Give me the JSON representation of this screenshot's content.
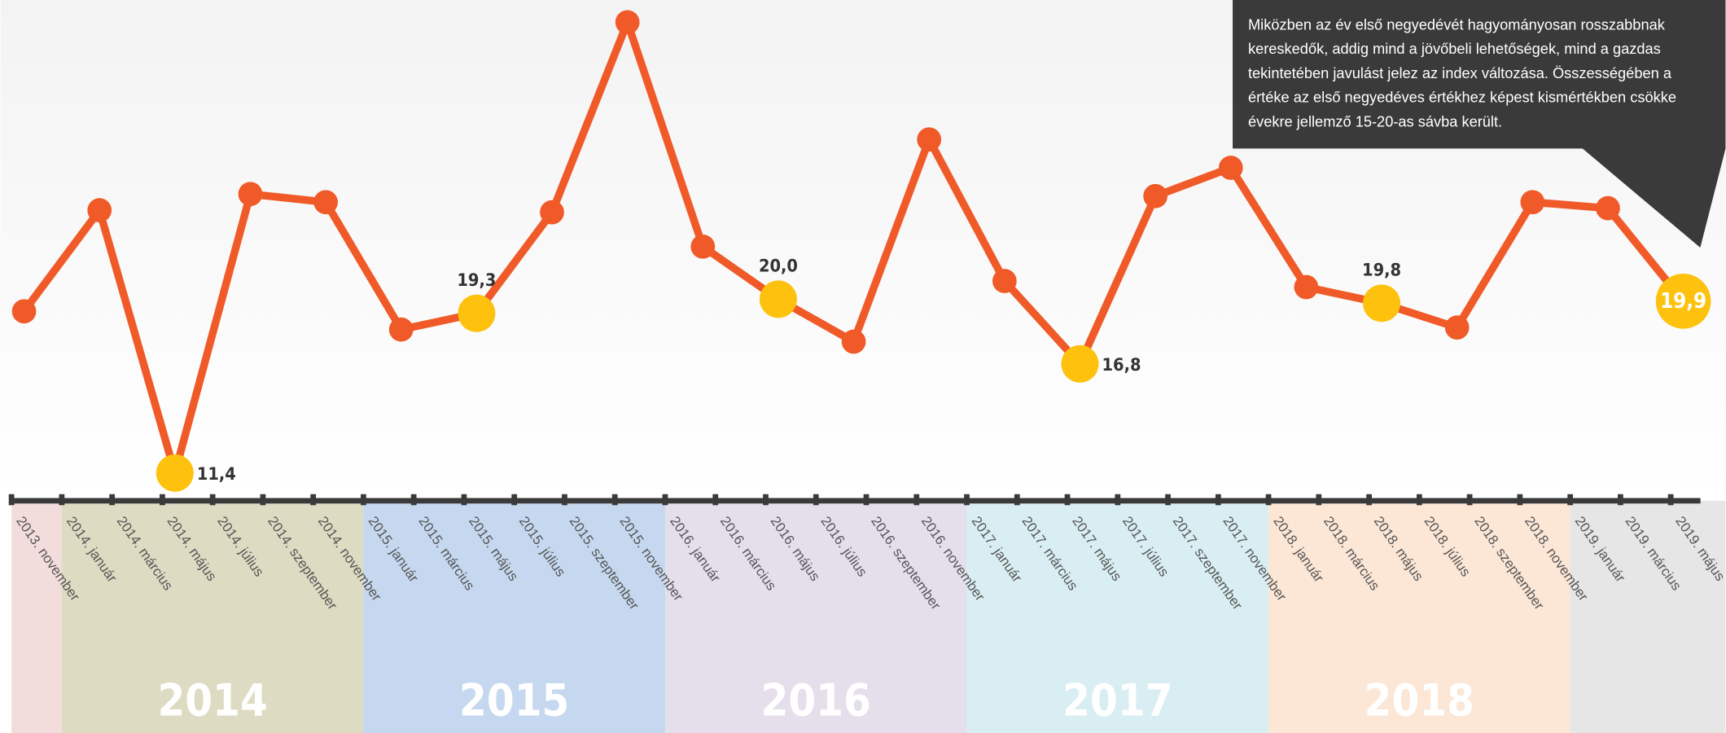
{
  "chart_data": {
    "type": "line",
    "annotation": [
      "Miközben az év első negyedévét hagyományosan rosszabbnak",
      "kereskedők, addig mind a jövőbeli lehetőségek, mind a gazdas",
      "tekintetében javulást jelez az index változása. Összességében a",
      "értéke az első negyedéves értékhez képest kismértékben csökke",
      "évekre jellemző 15-20-as sávba került."
    ],
    "x": [
      0.5,
      3.5,
      6.5,
      9.5,
      12.5,
      15.5,
      18.5,
      21.5,
      24.5,
      27.5,
      30.5,
      33.5,
      36.5,
      39.5,
      42.5,
      45.5,
      48.5,
      51.5,
      54.5,
      57.5,
      60.5,
      63.5,
      66.5
    ],
    "values": [
      19.4,
      24.4,
      11.4,
      25.2,
      24.8,
      18.5,
      19.3,
      24.3,
      33.7,
      22.6,
      20.0,
      17.9,
      27.9,
      20.9,
      16.8,
      25.1,
      26.5,
      20.6,
      19.8,
      18.6,
      24.8,
      24.5,
      19.9
    ],
    "value_labels": [
      null,
      null,
      "11,4",
      null,
      null,
      null,
      "19,3",
      null,
      null,
      null,
      "20,0",
      null,
      null,
      null,
      "16,8",
      null,
      null,
      null,
      "19,8",
      null,
      null,
      null,
      "19,9"
    ],
    "color": "#f05a28",
    "highlight_color": "#fdc10e",
    "xlim": [
      -0.44,
      68.18
    ],
    "ylim": [
      10.3,
      34.8
    ],
    "xticks": [
      {
        "value": 0,
        "label": "2013. november"
      },
      {
        "value": 2,
        "label": "2014. január"
      },
      {
        "value": 4,
        "label": "2014. március"
      },
      {
        "value": 6,
        "label": "2014. május"
      },
      {
        "value": 8,
        "label": "2014. július"
      },
      {
        "value": 10,
        "label": "2014. szeptember"
      },
      {
        "value": 12,
        "label": "2014. november"
      },
      {
        "value": 14,
        "label": "2015. január"
      },
      {
        "value": 16,
        "label": "2015. március"
      },
      {
        "value": 18,
        "label": "2015. május"
      },
      {
        "value": 20,
        "label": "2015. július"
      },
      {
        "value": 22,
        "label": "2015. szeptember"
      },
      {
        "value": 24,
        "label": "2015. november"
      },
      {
        "value": 26,
        "label": "2016. január"
      },
      {
        "value": 28,
        "label": "2016. március"
      },
      {
        "value": 30,
        "label": "2016. május"
      },
      {
        "value": 32,
        "label": "2016. július"
      },
      {
        "value": 34,
        "label": "2016. szeptember"
      },
      {
        "value": 36,
        "label": "2016. november"
      },
      {
        "value": 38,
        "label": "2017. január"
      },
      {
        "value": 40,
        "label": "2017. március"
      },
      {
        "value": 42,
        "label": "2017. május"
      },
      {
        "value": 44,
        "label": "2017. július"
      },
      {
        "value": 46,
        "label": "2017. szeptember"
      },
      {
        "value": 48,
        "label": "2017. november"
      },
      {
        "value": 50,
        "label": "2018. január"
      },
      {
        "value": 52,
        "label": "2018. március"
      },
      {
        "value": 54,
        "label": "2018. május"
      },
      {
        "value": 56,
        "label": "2018. július"
      },
      {
        "value": 58,
        "label": "2018. szeptember"
      },
      {
        "value": 60,
        "label": "2018. november"
      },
      {
        "value": 62,
        "label": "2019. január"
      },
      {
        "value": 64,
        "label": "2019. március"
      },
      {
        "value": 66,
        "label": "2019. május"
      }
    ],
    "bands": [
      {
        "from": 0,
        "to": 2,
        "color": "#f3dcdc"
      },
      {
        "label": "2014",
        "from": 2,
        "to": 14,
        "color": "#dedbc3"
      },
      {
        "label": "2015",
        "from": 14,
        "to": 26,
        "color": "#c6d8ef"
      },
      {
        "label": "2016",
        "from": 26,
        "to": 38,
        "color": "#e5dfec"
      },
      {
        "label": "2017",
        "from": 38,
        "to": 50,
        "color": "#d9eef3"
      },
      {
        "label": "2018",
        "from": 50,
        "to": 62,
        "color": "#fce6d6"
      },
      {
        "from": 62,
        "to": 68.18,
        "color": "#e6e6e6"
      }
    ]
  }
}
